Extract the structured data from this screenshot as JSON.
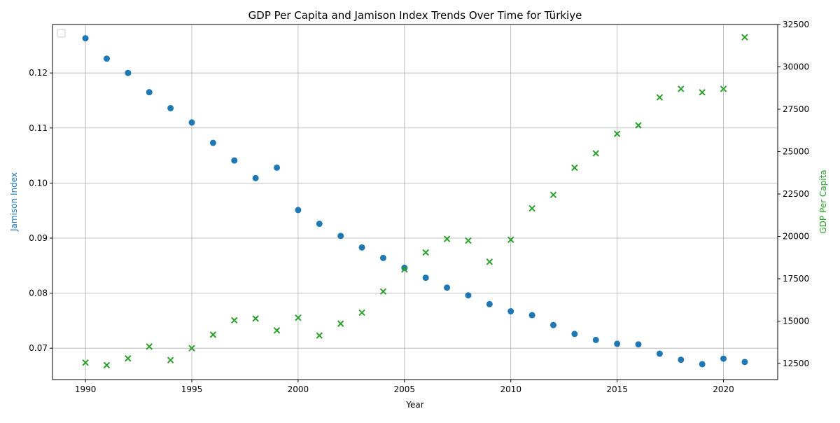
{
  "chart_data": {
    "type": "scatter",
    "title": "GDP Per Capita and Jamison Index Trends Over Time for Türkiye",
    "xlabel": "Year",
    "ylabel_left": "Jamison Index",
    "ylabel_right": "GDP Per Capita",
    "xlim": [
      1988.45,
      2022.55
    ],
    "ylim_left": [
      0.0643,
      0.1288
    ],
    "ylim_right": [
      11550,
      32500
    ],
    "x_ticks": [
      1990,
      1995,
      2000,
      2005,
      2010,
      2015,
      2020
    ],
    "y_ticks_left": [
      0.07,
      0.08,
      0.09,
      0.1,
      0.11,
      0.12
    ],
    "y_tick_labels_left": [
      "0.07",
      "0.08",
      "0.09",
      "0.10",
      "0.11",
      "0.12"
    ],
    "y_ticks_right": [
      12500,
      15000,
      17500,
      20000,
      22500,
      25000,
      27500,
      30000,
      32500
    ],
    "grid": true,
    "legend": "top-left",
    "colors": {
      "jamison": "#1f77b4",
      "gdp": "#2ca02c",
      "grid": "#b0b0b0",
      "axis": "#000000"
    },
    "series": [
      {
        "name": "Jamison Index",
        "axis": "left",
        "marker": "circle",
        "x": [
          1990,
          1991,
          1992,
          1993,
          1994,
          1995,
          1996,
          1997,
          1998,
          1999,
          2000,
          2001,
          2002,
          2003,
          2004,
          2005,
          2006,
          2007,
          2008,
          2009,
          2010,
          2011,
          2012,
          2013,
          2014,
          2015,
          2016,
          2017,
          2018,
          2019,
          2020,
          2021
        ],
        "values": [
          0.1263,
          0.1226,
          0.12,
          0.1165,
          0.1136,
          0.111,
          0.1073,
          0.1041,
          0.1009,
          0.1028,
          0.0951,
          0.0926,
          0.0904,
          0.0883,
          0.0864,
          0.0846,
          0.0828,
          0.081,
          0.0796,
          0.078,
          0.0767,
          0.076,
          0.0742,
          0.0726,
          0.0715,
          0.0708,
          0.0707,
          0.069,
          0.0679,
          0.0671,
          0.0681,
          0.0675
        ]
      },
      {
        "name": "GDP Per Capita",
        "axis": "right",
        "marker": "x",
        "x": [
          1990,
          1991,
          1992,
          1993,
          1994,
          1995,
          1996,
          1997,
          1998,
          1999,
          2000,
          2001,
          2002,
          2003,
          2004,
          2005,
          2006,
          2007,
          2008,
          2009,
          2010,
          2011,
          2012,
          2013,
          2014,
          2015,
          2016,
          2017,
          2018,
          2019,
          2020,
          2021
        ],
        "values": [
          12550,
          12400,
          12800,
          13500,
          12700,
          13400,
          14200,
          15050,
          15150,
          14450,
          15200,
          14150,
          14850,
          15500,
          16750,
          18050,
          19050,
          19850,
          19750,
          18500,
          19800,
          21650,
          22450,
          24050,
          24900,
          26050,
          26550,
          28200,
          28700,
          28500,
          28700,
          31750
        ]
      }
    ]
  }
}
